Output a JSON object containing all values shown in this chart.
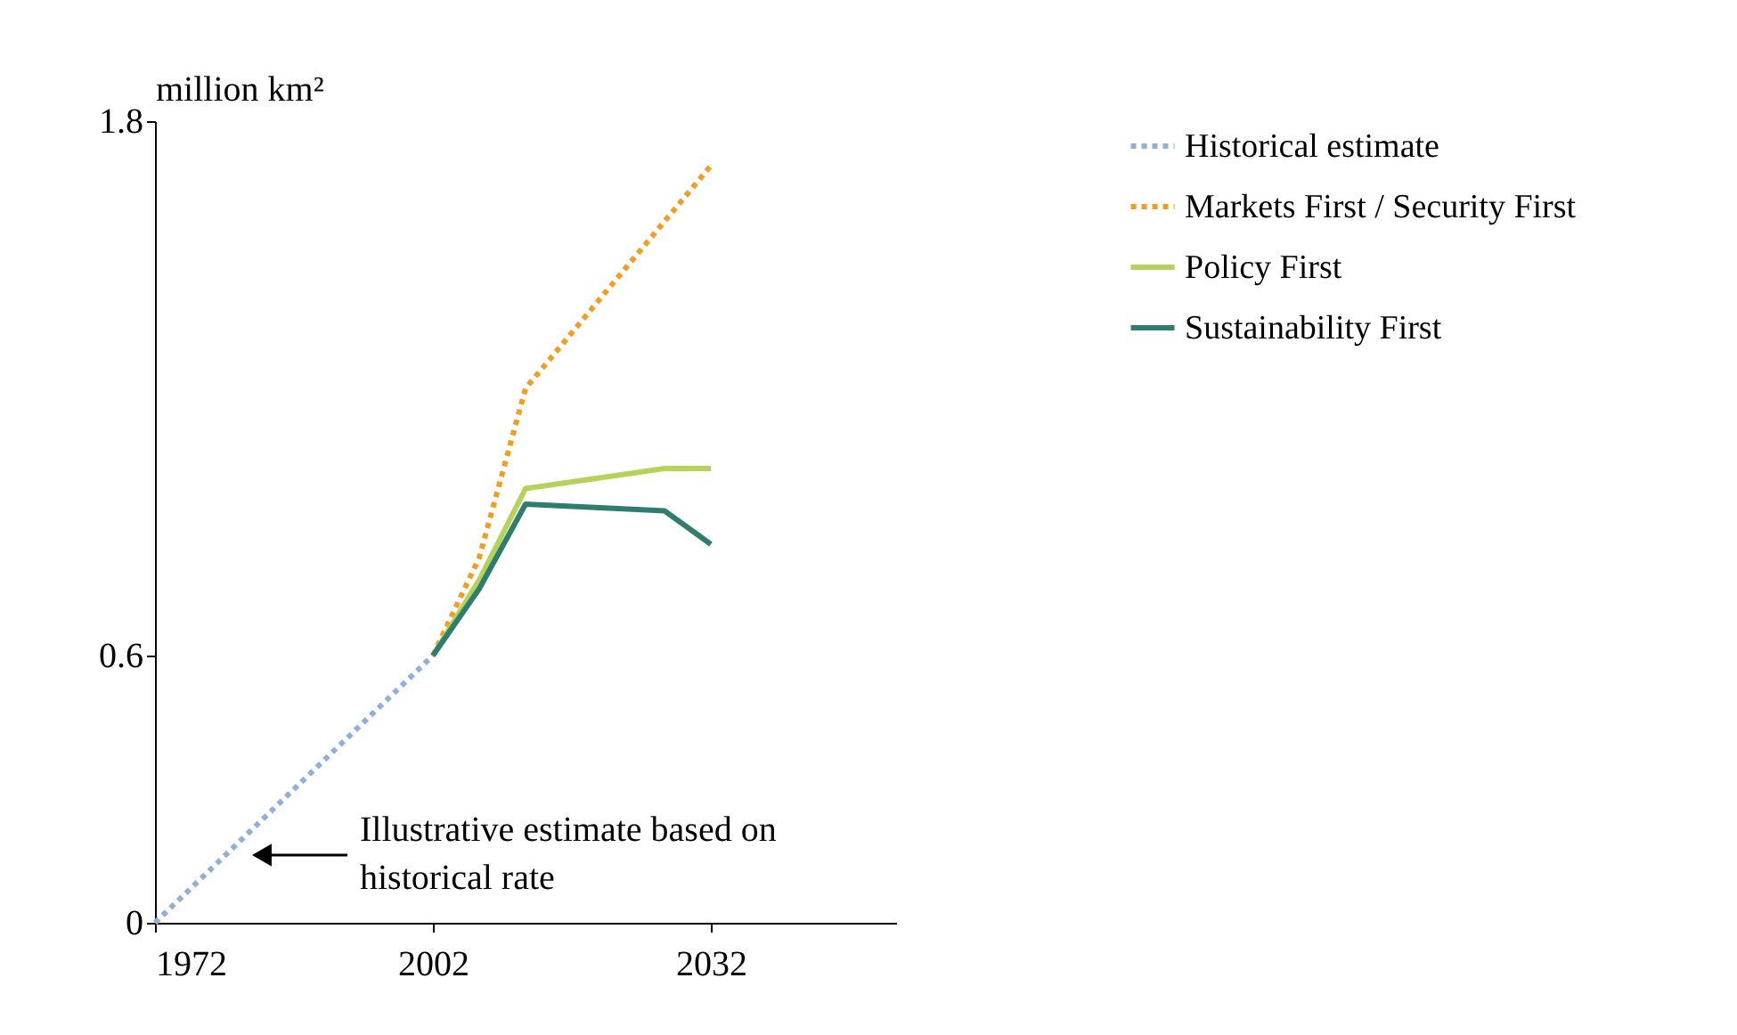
{
  "chart_data": {
    "type": "line",
    "ylabel": "million km²",
    "xlim": [
      1972,
      2052
    ],
    "xticks": [
      1972,
      2002,
      2032
    ],
    "ylim": [
      0,
      1.8
    ],
    "yticks": [
      0,
      0.6,
      1.8
    ],
    "grid": false,
    "legend": "top right",
    "marker": "none",
    "series": [
      {
        "name": "Historical estimate",
        "color": "#8fb0dc",
        "line_style": "dotted",
        "x": [
          1972,
          2002
        ],
        "values": [
          0,
          0.6
        ]
      },
      {
        "name": "Markets First / Security First",
        "color": "#f39c1f",
        "line_style": "dotted",
        "x": [
          2002,
          2007,
          2012,
          2032
        ],
        "values": [
          0.6,
          0.82,
          1.2,
          1.7
        ]
      },
      {
        "name": "Policy First",
        "color": "#b5d35a",
        "line_style": "solid",
        "x": [
          2002,
          2007,
          2012,
          2027,
          2032
        ],
        "values": [
          0.6,
          0.77,
          0.975,
          1.02,
          1.02
        ]
      },
      {
        "name": "Sustainability First",
        "color": "#2e7d6e",
        "line_style": "solid",
        "x": [
          2002,
          2007,
          2012,
          2027,
          2032
        ],
        "values": [
          0.6,
          0.75,
          0.94,
          0.925,
          0.85
        ]
      }
    ],
    "annotations": [
      "Illustrative estimate based on\nhistorical rate"
    ]
  }
}
